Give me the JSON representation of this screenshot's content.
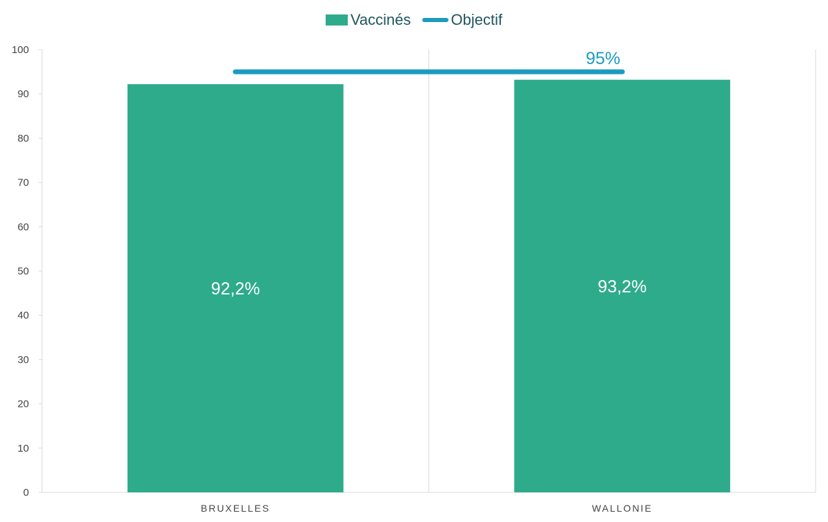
{
  "legend": {
    "vaccines_label": "Vaccinés",
    "objectif_label": "Objectif"
  },
  "colors": {
    "bar": "#2eab8a",
    "target": "#1d9bbf",
    "axis": "#d9d9d9",
    "text": "#444444"
  },
  "chart_data": {
    "type": "bar",
    "categories": [
      "BRUXELLES",
      "WALLONIE"
    ],
    "series": [
      {
        "name": "Vaccinés",
        "values": [
          92.2,
          93.2
        ],
        "labels": [
          "92,2%",
          "93,2%"
        ]
      },
      {
        "name": "Objectif",
        "type": "line",
        "value": 95,
        "label": "95%"
      }
    ],
    "ylim": [
      0,
      100
    ],
    "yticks": [
      0,
      10,
      20,
      30,
      40,
      50,
      60,
      70,
      80,
      90,
      100
    ],
    "xlabel": "",
    "ylabel": "",
    "grid": false,
    "legend_position": "top-center"
  }
}
